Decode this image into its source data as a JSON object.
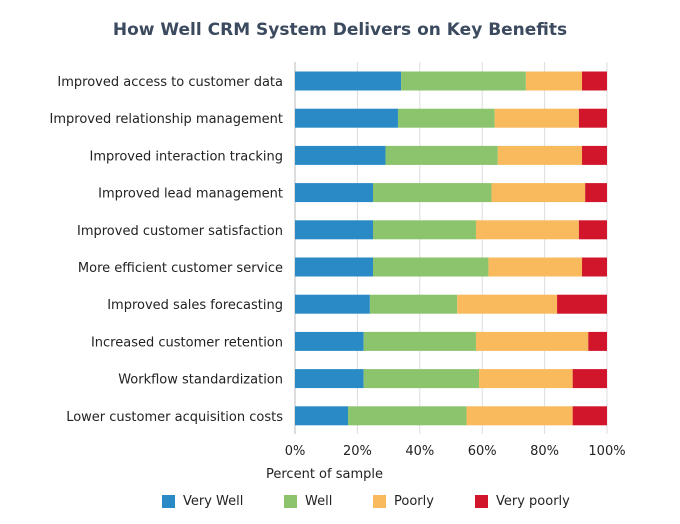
{
  "chart_data": {
    "type": "bar",
    "orientation": "horizontal",
    "stacked": true,
    "title": "How Well CRM System Delivers on Key Benefits",
    "xlabel": "Percent of sample",
    "ylabel": "",
    "xlim": [
      0,
      100
    ],
    "xticks": [
      "0%",
      "20%",
      "40%",
      "60%",
      "80%",
      "100%"
    ],
    "grid": true,
    "legend_position": "bottom",
    "categories": [
      "Improved access to customer data",
      "Improved relationship management",
      "Improved interaction tracking",
      "Improved lead management",
      "Improved customer satisfaction",
      "More efficient customer service",
      "Improved sales forecasting",
      "Increased customer retention",
      "Workflow standardization",
      "Lower customer acquisition costs"
    ],
    "series": [
      {
        "name": "Very Well",
        "color": "#2a8ac6",
        "values": [
          34,
          33,
          29,
          25,
          25,
          25,
          24,
          22,
          22,
          17
        ]
      },
      {
        "name": "Well",
        "color": "#8bc46c",
        "values": [
          40,
          31,
          36,
          38,
          33,
          37,
          28,
          36,
          37,
          38
        ]
      },
      {
        "name": "Poorly",
        "color": "#f8ba5c",
        "values": [
          18,
          27,
          27,
          30,
          33,
          30,
          32,
          36,
          30,
          34
        ]
      },
      {
        "name": "Very poorly",
        "color": "#d1162b",
        "values": [
          8,
          9,
          8,
          7,
          9,
          8,
          16,
          6,
          11,
          11
        ]
      }
    ]
  }
}
